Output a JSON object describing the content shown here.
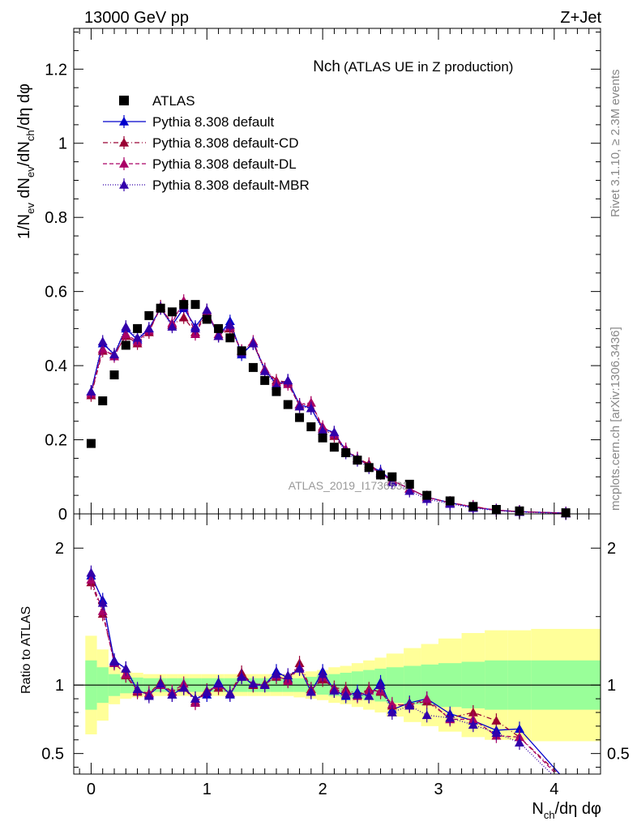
{
  "header": {
    "left": "13000 GeV pp",
    "right": "Z+Jet",
    "title_main": "Nch",
    "title_sub": "(ATLAS UE in Z production)",
    "side_top": "Rivet 3.1.10, ≥ 2.3M events",
    "side_bottom": "mcplots.cern.ch [arXiv:1306.3436]",
    "watermark": "ATLAS_2019_I1736531"
  },
  "colors": {
    "data": "#000000",
    "default": "#0000cc",
    "cd": "#990033",
    "dl": "#aa0066",
    "mbr": "#3300aa",
    "band_inner": "#99ff99",
    "band_outer": "#ffff99"
  },
  "chart_data": [
    {
      "type": "scatter",
      "panel": "main",
      "ylabel": "1/N_ev dN_ev/dN_ch/dη dφ",
      "xlim": [
        -0.15,
        4.4
      ],
      "ylim": [
        0,
        1.31
      ],
      "y_ticks": [
        "0",
        "0.2",
        "0.4",
        "0.6",
        "0.8",
        "1",
        "1.2"
      ],
      "legend_position": "top-left",
      "x": [
        0,
        0.1,
        0.2,
        0.3,
        0.4,
        0.5,
        0.6,
        0.7,
        0.8,
        0.9,
        1.0,
        1.1,
        1.2,
        1.3,
        1.4,
        1.5,
        1.6,
        1.7,
        1.8,
        1.9,
        2.0,
        2.1,
        2.2,
        2.3,
        2.4,
        2.5,
        2.6,
        2.75,
        2.9,
        3.1,
        3.3,
        3.5,
        3.7,
        4.1
      ],
      "series": [
        {
          "name": "ATLAS",
          "style": "data",
          "values": [
            0.19,
            0.305,
            0.375,
            0.455,
            0.5,
            0.535,
            0.555,
            0.545,
            0.565,
            0.565,
            0.525,
            0.5,
            0.475,
            0.44,
            0.395,
            0.36,
            0.33,
            0.295,
            0.26,
            0.235,
            0.205,
            0.18,
            0.165,
            0.145,
            0.125,
            0.105,
            0.1,
            0.08,
            0.05,
            0.035,
            0.02,
            0.012,
            0.008,
            0.003
          ]
        },
        {
          "name": "Pythia 8.308 default",
          "style": "default",
          "values": [
            0.33,
            0.46,
            0.43,
            0.5,
            0.47,
            0.5,
            0.555,
            0.51,
            0.555,
            0.505,
            0.545,
            0.48,
            0.52,
            0.43,
            0.46,
            0.39,
            0.35,
            0.36,
            0.295,
            0.285,
            0.23,
            0.22,
            0.17,
            0.15,
            0.13,
            0.115,
            0.09,
            0.068,
            0.045,
            0.03,
            0.018,
            0.01,
            0.006,
            0.002
          ]
        },
        {
          "name": "Pythia 8.308 default-CD",
          "style": "cd",
          "values": [
            0.32,
            0.44,
            0.43,
            0.48,
            0.46,
            0.49,
            0.56,
            0.51,
            0.53,
            0.49,
            0.55,
            0.48,
            0.5,
            0.44,
            0.46,
            0.39,
            0.36,
            0.355,
            0.29,
            0.3,
            0.23,
            0.21,
            0.17,
            0.15,
            0.135,
            0.11,
            0.09,
            0.068,
            0.045,
            0.03,
            0.02,
            0.01,
            0.006,
            0.002
          ]
        },
        {
          "name": "Pythia 8.308 default-DL",
          "style": "dl",
          "values": [
            0.325,
            0.445,
            0.425,
            0.485,
            0.465,
            0.495,
            0.555,
            0.515,
            0.575,
            0.485,
            0.545,
            0.485,
            0.505,
            0.44,
            0.465,
            0.39,
            0.355,
            0.35,
            0.295,
            0.3,
            0.235,
            0.215,
            0.175,
            0.15,
            0.13,
            0.11,
            0.09,
            0.068,
            0.045,
            0.03,
            0.019,
            0.01,
            0.006,
            0.002
          ]
        },
        {
          "name": "Pythia 8.308 default-MBR",
          "style": "mbr",
          "values": [
            0.33,
            0.465,
            0.43,
            0.505,
            0.475,
            0.5,
            0.555,
            0.505,
            0.56,
            0.5,
            0.55,
            0.48,
            0.51,
            0.435,
            0.46,
            0.385,
            0.345,
            0.36,
            0.29,
            0.285,
            0.225,
            0.22,
            0.165,
            0.145,
            0.125,
            0.11,
            0.085,
            0.062,
            0.04,
            0.027,
            0.016,
            0.009,
            0.005,
            0.001
          ]
        }
      ]
    },
    {
      "type": "line",
      "panel": "ratio",
      "ylabel": "Ratio to ATLAS",
      "xlabel": "N_ch/dη dφ",
      "xlim": [
        -0.15,
        4.4
      ],
      "ylim": [
        0.35,
        2.25
      ],
      "x_ticks": [
        "0",
        "1",
        "2",
        "3",
        "4"
      ],
      "y_ticks": [
        "0.5",
        "1",
        "2"
      ],
      "x": [
        0,
        0.1,
        0.2,
        0.3,
        0.4,
        0.5,
        0.6,
        0.7,
        0.8,
        0.9,
        1.0,
        1.1,
        1.2,
        1.3,
        1.4,
        1.5,
        1.6,
        1.7,
        1.8,
        1.9,
        2.0,
        2.1,
        2.2,
        2.3,
        2.4,
        2.5,
        2.6,
        2.75,
        2.9,
        3.1,
        3.3,
        3.5,
        3.7,
        4.1
      ],
      "band_edges": [
        -0.05,
        0.05,
        0.15,
        0.25,
        0.35,
        0.45,
        0.55,
        0.65,
        0.75,
        0.85,
        0.95,
        1.05,
        1.15,
        1.25,
        1.35,
        1.45,
        1.55,
        1.65,
        1.75,
        1.85,
        1.95,
        2.05,
        2.15,
        2.25,
        2.35,
        2.45,
        2.55,
        2.7,
        2.85,
        3.0,
        3.2,
        3.4,
        3.6,
        3.8,
        4.4
      ],
      "band_inner": [
        0.18,
        0.13,
        0.08,
        0.06,
        0.055,
        0.05,
        0.05,
        0.05,
        0.05,
        0.05,
        0.05,
        0.05,
        0.05,
        0.05,
        0.05,
        0.05,
        0.05,
        0.05,
        0.05,
        0.06,
        0.07,
        0.08,
        0.09,
        0.1,
        0.11,
        0.12,
        0.13,
        0.14,
        0.15,
        0.16,
        0.17,
        0.18,
        0.18,
        0.18
      ],
      "band_outer": [
        0.36,
        0.26,
        0.14,
        0.1,
        0.09,
        0.08,
        0.08,
        0.08,
        0.08,
        0.08,
        0.08,
        0.08,
        0.08,
        0.08,
        0.08,
        0.08,
        0.08,
        0.08,
        0.09,
        0.1,
        0.11,
        0.13,
        0.14,
        0.16,
        0.18,
        0.2,
        0.23,
        0.27,
        0.3,
        0.34,
        0.38,
        0.4,
        0.4,
        0.41
      ],
      "series": [
        {
          "name": "Pythia 8.308 default",
          "style": "default",
          "values": [
            1.8,
            1.62,
            1.18,
            1.12,
            0.96,
            0.93,
            1.0,
            0.93,
            0.98,
            0.9,
            0.93,
            1.02,
            0.93,
            1.07,
            1.0,
            1.0,
            1.1,
            1.05,
            1.13,
            0.95,
            1.1,
            0.96,
            0.92,
            0.95,
            0.92,
            1.02,
            0.82,
            0.87,
            0.9,
            0.79,
            0.74,
            0.67,
            0.68,
            0.3
          ]
        },
        {
          "name": "Pythia 8.308 default-CD",
          "style": "cd",
          "values": [
            1.75,
            1.52,
            1.17,
            1.07,
            0.95,
            0.94,
            1.02,
            0.95,
            0.98,
            0.88,
            0.96,
            0.98,
            0.94,
            1.09,
            1.0,
            1.01,
            1.06,
            1.04,
            1.16,
            0.97,
            1.04,
            0.98,
            0.97,
            0.93,
            0.97,
            0.95,
            0.85,
            0.86,
            0.88,
            0.76,
            0.8,
            0.74,
            0.62,
            0.3
          ]
        },
        {
          "name": "Pythia 8.308 default-DL",
          "style": "dl",
          "values": [
            1.77,
            1.54,
            1.16,
            1.08,
            0.96,
            0.94,
            1.0,
            0.95,
            1.01,
            0.87,
            0.95,
            1.0,
            0.94,
            1.06,
            1.01,
            1.0,
            1.07,
            1.03,
            1.13,
            0.96,
            1.06,
            0.97,
            0.95,
            0.92,
            0.96,
            0.96,
            0.86,
            0.85,
            0.9,
            0.75,
            0.75,
            0.63,
            0.62,
            0.28
          ]
        },
        {
          "name": "Pythia 8.308 default-MBR",
          "style": "mbr",
          "values": [
            1.82,
            1.6,
            1.17,
            1.12,
            0.97,
            0.92,
            1.01,
            0.93,
            0.98,
            0.9,
            0.95,
            1.01,
            0.94,
            1.06,
            1.01,
            1.0,
            1.08,
            1.07,
            1.12,
            0.95,
            1.08,
            0.96,
            0.93,
            0.93,
            0.92,
            1.0,
            0.8,
            0.85,
            0.78,
            0.76,
            0.71,
            0.65,
            0.58,
            0.25
          ]
        }
      ]
    }
  ]
}
